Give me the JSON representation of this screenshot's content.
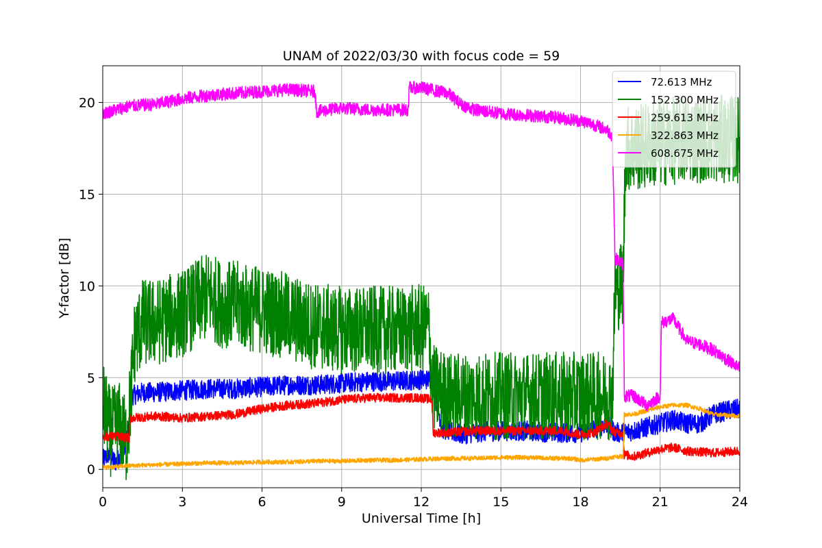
{
  "chart_data": {
    "type": "line",
    "title": "UNAM of 2022/03/30 with focus code = 59",
    "xlabel": "Universal Time [h]",
    "ylabel": "Y-factor [dB]",
    "xlim": [
      0,
      24
    ],
    "ylim": [
      -1,
      22
    ],
    "x_ticks": [
      0,
      3,
      6,
      9,
      12,
      15,
      18,
      21,
      24
    ],
    "y_ticks": [
      0,
      5,
      10,
      15,
      20
    ],
    "grid": true,
    "legend_position": "top-right",
    "series": [
      {
        "name": " 72.613 MHz",
        "color": "#0000ff",
        "x": [
          0,
          0.2,
          0.5,
          0.8,
          1.0,
          1.05,
          1.5,
          2,
          3,
          4,
          5,
          6,
          7,
          8,
          9,
          10,
          11,
          12,
          12.4,
          12.8,
          13.5,
          14,
          15,
          16,
          17,
          18,
          18.5,
          19,
          19.3,
          19.6,
          20,
          20.5,
          21,
          21.5,
          22,
          22.5,
          23,
          23.5,
          24
        ],
        "y": [
          0.5,
          0.8,
          0.4,
          1.0,
          2.5,
          4.0,
          4.2,
          4.2,
          4.3,
          4.4,
          4.4,
          4.5,
          4.6,
          4.6,
          4.7,
          4.8,
          4.8,
          4.9,
          4.9,
          2.2,
          1.9,
          2.0,
          2.1,
          2.1,
          2.0,
          2.0,
          2.2,
          2.5,
          2.0,
          2.0,
          2.1,
          2.3,
          2.5,
          2.7,
          2.5,
          2.5,
          3.0,
          3.2,
          3.3
        ],
        "noise": 0.55
      },
      {
        "name": "152.300 MHz",
        "color": "#008000",
        "x": [
          0,
          0.3,
          0.6,
          0.9,
          1.0,
          1.2,
          1.5,
          2,
          3,
          3.5,
          4,
          4.5,
          5,
          5.5,
          6,
          6.5,
          7,
          7.5,
          8,
          9,
          10,
          11,
          12,
          12.3,
          12.4,
          13,
          14,
          15,
          16,
          17,
          18,
          18.5,
          19.2,
          19.3,
          19.6,
          19.7,
          20,
          21,
          22,
          23,
          24
        ],
        "y": [
          3.5,
          2.0,
          2.5,
          1.5,
          3.0,
          7.0,
          8.0,
          8.0,
          8.5,
          9.0,
          9.5,
          9.0,
          9.0,
          8.8,
          8.7,
          8.5,
          8.3,
          8.0,
          7.8,
          7.6,
          7.6,
          7.6,
          7.7,
          7.7,
          4.5,
          4.0,
          4.0,
          4.0,
          4.0,
          4.0,
          4.0,
          4.0,
          4.0,
          9.8,
          10.2,
          17.5,
          17.5,
          17.8,
          18.0,
          18.0,
          18.0
        ],
        "noise": 2.4
      },
      {
        "name": "259.613 MHz",
        "color": "#ff0000",
        "x": [
          0,
          0.5,
          1.0,
          1.05,
          2,
          3,
          4,
          5,
          6,
          7,
          8,
          9,
          10,
          11,
          12,
          12.4,
          12.45,
          13,
          14,
          15,
          16,
          17,
          17.5,
          17.6,
          18,
          18.5,
          19,
          19.3,
          19.6,
          19.65,
          20,
          20.5,
          21,
          21.5,
          22,
          23,
          24
        ],
        "y": [
          1.8,
          1.8,
          1.7,
          2.8,
          2.9,
          2.8,
          2.9,
          3.0,
          3.3,
          3.5,
          3.6,
          3.8,
          3.9,
          3.9,
          3.9,
          3.8,
          2.0,
          2.0,
          2.1,
          2.1,
          2.1,
          2.1,
          2.1,
          2.0,
          1.9,
          2.0,
          2.5,
          2.0,
          2.0,
          0.8,
          0.7,
          0.9,
          1.1,
          1.2,
          1.0,
          0.9,
          1.0
        ],
        "noise": 0.25
      },
      {
        "name": "322.863 MHz",
        "color": "#ffa500",
        "x": [
          0,
          1,
          2,
          3,
          4,
          5,
          6,
          7,
          8,
          9,
          10,
          11,
          12,
          13,
          14,
          15,
          16,
          17,
          17.5,
          17.6,
          18,
          19,
          19.3,
          19.5,
          19.6,
          19.65,
          20,
          20.5,
          21,
          21.5,
          22,
          22.5,
          23,
          24
        ],
        "y": [
          0.1,
          0.2,
          0.25,
          0.3,
          0.35,
          0.35,
          0.4,
          0.4,
          0.45,
          0.45,
          0.5,
          0.5,
          0.55,
          0.6,
          0.6,
          0.65,
          0.65,
          0.6,
          0.6,
          0.6,
          0.5,
          0.6,
          0.7,
          0.7,
          0.7,
          3.0,
          3.0,
          3.2,
          3.4,
          3.5,
          3.5,
          3.3,
          3.0,
          2.9
        ],
        "noise": 0.12
      },
      {
        "name": "608.675 MHz",
        "color": "#ff00ff",
        "x": [
          0,
          0.5,
          1,
          2,
          3,
          4,
          5,
          6,
          7,
          8,
          8.05,
          9,
          10,
          11,
          11.5,
          11.55,
          12,
          13,
          13.5,
          14,
          15,
          16,
          17,
          18,
          18.5,
          19,
          19.2,
          19.3,
          19.6,
          19.65,
          20,
          20.5,
          21,
          21.05,
          21.5,
          22,
          22.5,
          23,
          24
        ],
        "y": [
          19.4,
          19.6,
          19.8,
          19.9,
          20.2,
          20.4,
          20.5,
          20.6,
          20.7,
          20.6,
          19.5,
          19.7,
          19.6,
          19.6,
          19.6,
          20.8,
          20.8,
          20.5,
          19.9,
          19.6,
          19.4,
          19.3,
          19.2,
          19.0,
          18.8,
          18.5,
          18.2,
          11.5,
          11.2,
          4.0,
          4.0,
          3.5,
          4.0,
          8.0,
          8.2,
          7.0,
          6.8,
          6.5,
          5.5
        ],
        "noise": 0.35
      }
    ]
  }
}
